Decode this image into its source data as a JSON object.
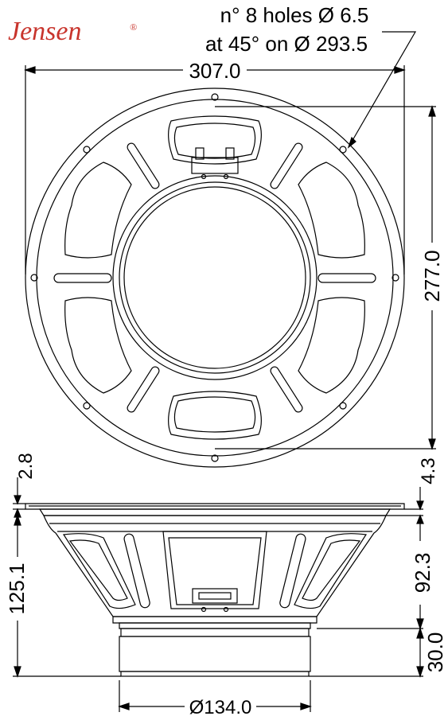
{
  "brand": {
    "name": "Jensen",
    "mark": "®",
    "color": "#c8342c"
  },
  "notes": {
    "holes_line1": "n° 8 holes Ø 6.5",
    "holes_line2": "at 45° on Ø 293.5"
  },
  "dimensions": {
    "outer_diameter": "307.0",
    "height_front": "277.0",
    "flange_thickness": "2.8",
    "gasket_height": "4.3",
    "total_depth": "125.1",
    "basket_depth": "92.3",
    "magnet_height": "30.0",
    "magnet_diameter": "Ø134.0"
  }
}
